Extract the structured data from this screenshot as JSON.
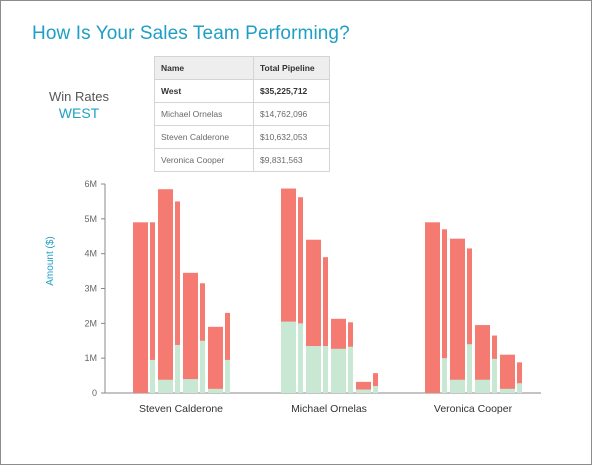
{
  "title": "How Is Your Sales Team Performing?",
  "win_rates": {
    "label": "Win Rates",
    "region": "WEST"
  },
  "pipeline_table": {
    "headers": [
      "Name",
      "Total Pipeline"
    ],
    "rows": [
      {
        "name": "West",
        "value": "$35,225,712",
        "bold": true
      },
      {
        "name": "Michael Ornelas",
        "value": "$14,762,096"
      },
      {
        "name": "Steven Calderone",
        "value": "$10,632,053"
      },
      {
        "name": "Veronica Cooper",
        "value": "$9,831,563"
      }
    ]
  },
  "colors": {
    "accent": "#1e9fc4",
    "total": "#f47a72",
    "won": "#c9e8d4",
    "axis": "#888888"
  },
  "chart_data": {
    "type": "bar",
    "ylabel": "Amount ($)",
    "ylim": [
      0,
      6000000
    ],
    "yticks": [
      0,
      1000000,
      2000000,
      3000000,
      4000000,
      5000000,
      6000000
    ],
    "ytick_labels": [
      "0",
      "1M",
      "2M",
      "3M",
      "4M",
      "5M",
      "6M"
    ],
    "groups": [
      {
        "name": "Steven Calderone",
        "bars": [
          {
            "total": 4900000,
            "won": 0
          },
          {
            "total": 4900000,
            "won": 950000
          },
          {
            "total": 5850000,
            "won": 380000
          },
          {
            "total": 5500000,
            "won": 1380000
          },
          {
            "total": 3450000,
            "won": 400000
          },
          {
            "total": 3150000,
            "won": 1500000
          },
          {
            "total": 1900000,
            "won": 120000
          },
          {
            "total": 2300000,
            "won": 950000
          }
        ]
      },
      {
        "name": "Michael Ornelas",
        "bars": [
          {
            "total": 5870000,
            "won": 2050000
          },
          {
            "total": 5620000,
            "won": 2000000
          },
          {
            "total": 4400000,
            "won": 1350000
          },
          {
            "total": 3900000,
            "won": 1350000
          },
          {
            "total": 2130000,
            "won": 1270000
          },
          {
            "total": 2030000,
            "won": 1330000
          },
          {
            "total": 320000,
            "won": 100000
          },
          {
            "total": 570000,
            "won": 200000
          }
        ]
      },
      {
        "name": "Veronica Cooper",
        "bars": [
          {
            "total": 4900000,
            "won": 0
          },
          {
            "total": 4700000,
            "won": 1000000
          },
          {
            "total": 4430000,
            "won": 380000
          },
          {
            "total": 4150000,
            "won": 1400000
          },
          {
            "total": 1950000,
            "won": 380000
          },
          {
            "total": 1650000,
            "won": 980000
          },
          {
            "total": 1100000,
            "won": 120000
          },
          {
            "total": 880000,
            "won": 280000
          }
        ]
      }
    ]
  }
}
